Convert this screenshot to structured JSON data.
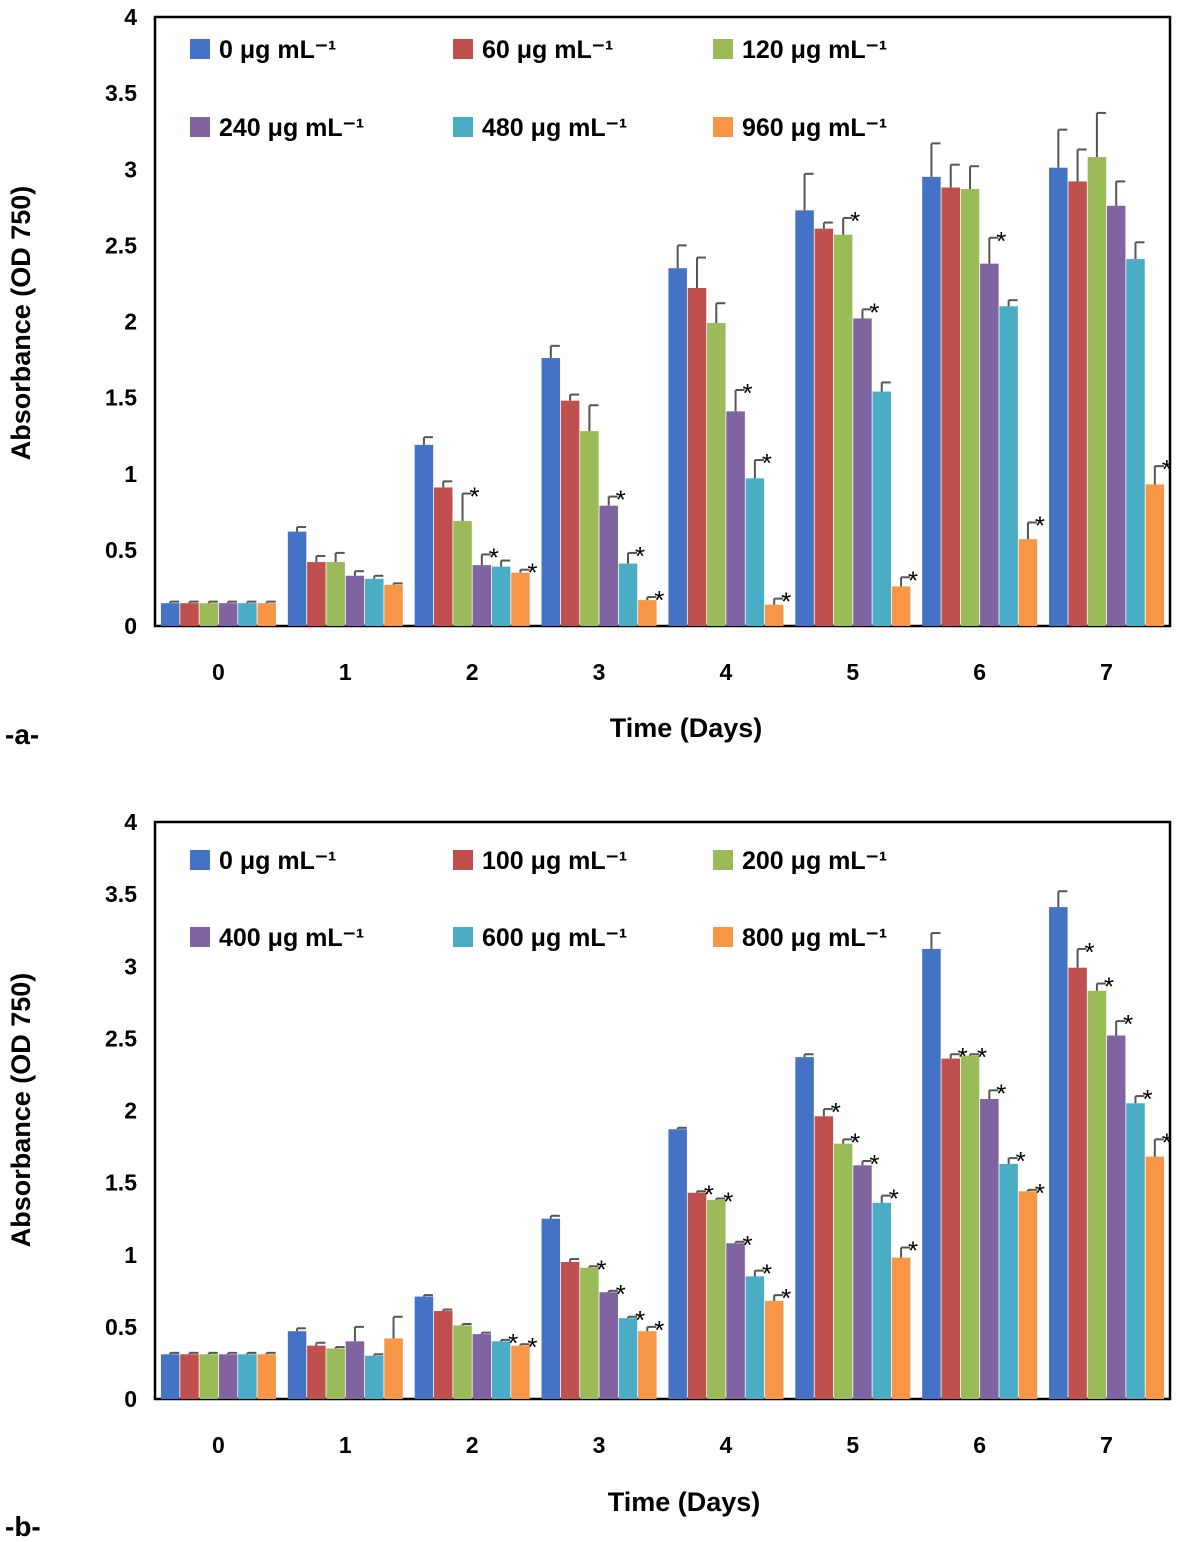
{
  "chart_data": [
    {
      "type": "bar",
      "panel_label": "-a-",
      "xlabel": "Time (Days)",
      "ylabel": "Absorbance (OD 750)",
      "ylim": [
        0,
        4
      ],
      "yticks": [
        "0",
        "0.5",
        "1",
        "1.5",
        "2",
        "2.5",
        "3",
        "3.5",
        "4"
      ],
      "categories": [
        "0",
        "1",
        "2",
        "3",
        "4",
        "5",
        "6",
        "7"
      ],
      "series": [
        {
          "name": "0 μg mL⁻¹",
          "color": "#4472C4",
          "values": [
            0.15,
            0.62,
            1.19,
            1.76,
            2.35,
            2.73,
            2.95,
            3.01
          ],
          "errors": [
            0.01,
            0.03,
            0.05,
            0.08,
            0.15,
            0.24,
            0.22,
            0.25
          ],
          "stars": [
            "",
            "",
            "",
            "",
            "",
            "",
            "",
            ""
          ]
        },
        {
          "name": "60 μg mL⁻¹",
          "color": "#C0504D",
          "values": [
            0.15,
            0.42,
            0.91,
            1.48,
            2.22,
            2.61,
            2.88,
            2.92
          ],
          "errors": [
            0.01,
            0.04,
            0.04,
            0.04,
            0.2,
            0.04,
            0.15,
            0.21
          ],
          "stars": [
            "",
            "",
            "",
            "",
            "",
            "",
            "",
            ""
          ]
        },
        {
          "name": "120 μg mL⁻¹",
          "color": "#9BBB59",
          "values": [
            0.15,
            0.42,
            0.69,
            1.28,
            1.99,
            2.57,
            2.87,
            3.08
          ],
          "errors": [
            0.01,
            0.06,
            0.18,
            0.17,
            0.13,
            0.11,
            0.15,
            0.29
          ],
          "stars": [
            "",
            "",
            "*",
            "",
            "",
            "*",
            "",
            ""
          ]
        },
        {
          "name": "240 μg mL⁻¹",
          "color": "#8064A2",
          "values": [
            0.15,
            0.33,
            0.4,
            0.79,
            1.41,
            2.02,
            2.38,
            2.76
          ],
          "errors": [
            0.01,
            0.03,
            0.07,
            0.06,
            0.14,
            0.06,
            0.17,
            0.16
          ],
          "stars": [
            "",
            "",
            "*",
            "*",
            "*",
            "*",
            "*",
            ""
          ]
        },
        {
          "name": "480 μg mL⁻¹",
          "color": "#4BACC6",
          "values": [
            0.15,
            0.31,
            0.39,
            0.41,
            0.97,
            1.54,
            2.1,
            2.41
          ],
          "errors": [
            0.01,
            0.02,
            0.04,
            0.07,
            0.12,
            0.06,
            0.04,
            0.11
          ],
          "stars": [
            "",
            "",
            "",
            "*",
            "*",
            "",
            "",
            ""
          ]
        },
        {
          "name": "960 μg mL⁻¹",
          "color": "#F79646",
          "values": [
            0.15,
            0.27,
            0.35,
            0.17,
            0.14,
            0.26,
            0.57,
            0.93
          ],
          "errors": [
            0.01,
            0.01,
            0.02,
            0.02,
            0.04,
            0.06,
            0.11,
            0.12
          ],
          "stars": [
            "",
            "",
            "*",
            "*",
            "*",
            "*",
            "*",
            "*"
          ]
        }
      ]
    },
    {
      "type": "bar",
      "panel_label": "-b-",
      "xlabel": "Time (Days)",
      "ylabel": "Absorbance (OD 750)",
      "ylim": [
        0,
        4
      ],
      "yticks": [
        "0",
        "0.5",
        "1",
        "1.5",
        "2",
        "2.5",
        "3",
        "3.5",
        "4"
      ],
      "categories": [
        "0",
        "1",
        "2",
        "3",
        "4",
        "5",
        "6",
        "7"
      ],
      "series": [
        {
          "name": "0 μg mL⁻¹",
          "color": "#4472C4",
          "values": [
            0.31,
            0.47,
            0.71,
            1.25,
            1.87,
            2.37,
            3.12,
            3.41
          ],
          "errors": [
            0.01,
            0.02,
            0.01,
            0.02,
            0.01,
            0.02,
            0.11,
            0.11
          ],
          "stars": [
            "",
            "",
            "",
            "",
            "",
            "",
            "",
            ""
          ]
        },
        {
          "name": "100 μg mL⁻¹",
          "color": "#C0504D",
          "values": [
            0.31,
            0.37,
            0.61,
            0.95,
            1.43,
            1.96,
            2.36,
            2.99
          ],
          "errors": [
            0.01,
            0.02,
            0.01,
            0.02,
            0.01,
            0.05,
            0.03,
            0.13
          ],
          "stars": [
            "",
            "",
            "",
            "",
            "*",
            "*",
            "*",
            "*"
          ]
        },
        {
          "name": "200 μg mL⁻¹",
          "color": "#9BBB59",
          "values": [
            0.31,
            0.35,
            0.51,
            0.91,
            1.38,
            1.77,
            2.38,
            2.83
          ],
          "errors": [
            0.01,
            0.01,
            0.01,
            0.01,
            0.01,
            0.03,
            0.01,
            0.05
          ],
          "stars": [
            "",
            "",
            "",
            "*",
            "*",
            "*",
            "*",
            "*"
          ]
        },
        {
          "name": "400 μg mL⁻¹",
          "color": "#8064A2",
          "values": [
            0.31,
            0.4,
            0.45,
            0.74,
            1.08,
            1.62,
            2.08,
            2.52
          ],
          "errors": [
            0.01,
            0.1,
            0.01,
            0.01,
            0.01,
            0.03,
            0.06,
            0.1
          ],
          "stars": [
            "",
            "",
            "",
            "*",
            "*",
            "*",
            "*",
            "*"
          ]
        },
        {
          "name": "600 μg mL⁻¹",
          "color": "#4BACC6",
          "values": [
            0.31,
            0.3,
            0.4,
            0.56,
            0.85,
            1.36,
            1.63,
            2.05
          ],
          "errors": [
            0.01,
            0.01,
            0.01,
            0.01,
            0.04,
            0.05,
            0.04,
            0.05
          ],
          "stars": [
            "",
            "",
            "*",
            "*",
            "*",
            "*",
            "*",
            "*"
          ]
        },
        {
          "name": "800 μg mL⁻¹",
          "color": "#F79646",
          "values": [
            0.31,
            0.42,
            0.37,
            0.47,
            0.68,
            0.98,
            1.44,
            1.68
          ],
          "errors": [
            0.01,
            0.15,
            0.01,
            0.03,
            0.04,
            0.07,
            0.01,
            0.12
          ],
          "stars": [
            "",
            "",
            "*",
            "*",
            "*",
            "*",
            "*",
            "*"
          ]
        }
      ]
    }
  ]
}
